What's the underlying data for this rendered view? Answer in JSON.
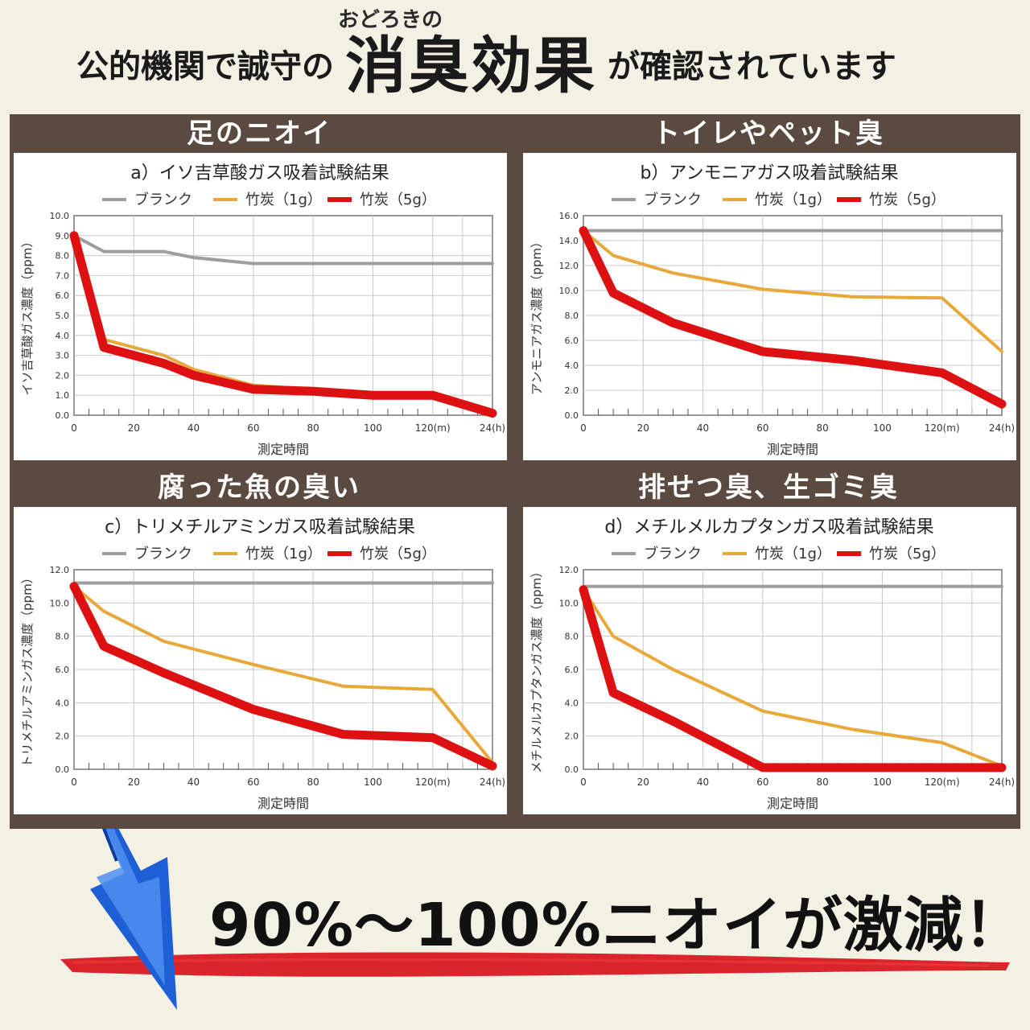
{
  "header": {
    "ruby": "おどろきの",
    "prefix": "公的機関で誠守の",
    "highlight": "消臭効果",
    "suffix": "が確認されています"
  },
  "legend": {
    "blank": "ブランク",
    "charcoal1": "竹炭（1g）",
    "charcoal5": "竹炭（5g）"
  },
  "colors": {
    "blank": "#9e9e9e",
    "charcoal1": "#e8a93a",
    "charcoal5": "#dd1111",
    "frame": "#5b4a3f"
  },
  "footer": {
    "claim": "90%〜100%ニオイが激減！",
    "arrow_icon": "blue-down-arrow-icon",
    "stroke_icon": "red-brush-stroke-icon"
  },
  "panels": [
    {
      "title": "足のニオイ",
      "subtitle": "a）イソ吉草酸ガス吸着試験結果",
      "ylabel": "イソ吉草酸ガス濃度（ppm）",
      "xlabel": "測定時間",
      "x_ticks": [
        "0",
        "20",
        "40",
        "60",
        "80",
        "100",
        "120(m)",
        "24(h)"
      ],
      "y_ticks": [
        "0.0",
        "1.0",
        "2.0",
        "3.0",
        "4.0",
        "5.0",
        "6.0",
        "7.0",
        "8.0",
        "9.0",
        "10.0"
      ],
      "ymax": 10
    },
    {
      "title": "トイレやペット臭",
      "subtitle": "b）アンモニアガス吸着試験結果",
      "ylabel": "アンモニアガス濃度（ppm）",
      "xlabel": "測定時間",
      "x_ticks": [
        "0",
        "20",
        "40",
        "60",
        "80",
        "100",
        "120(m)",
        "24(h)"
      ],
      "y_ticks": [
        "0.0",
        "2.0",
        "4.0",
        "6.0",
        "8.0",
        "10.0",
        "12.0",
        "14.0",
        "16.0"
      ],
      "ymax": 16
    },
    {
      "title": "腐った魚の臭い",
      "subtitle": "c）トリメチルアミンガス吸着試験結果",
      "ylabel": "トリメチルアミンガス濃度（ppm）",
      "xlabel": "測定時間",
      "x_ticks": [
        "0",
        "20",
        "40",
        "60",
        "80",
        "100",
        "120(m)",
        "24(h)"
      ],
      "y_ticks": [
        "0.0",
        "2.0",
        "4.0",
        "6.0",
        "8.0",
        "10.0",
        "12.0"
      ],
      "ymax": 12
    },
    {
      "title": "排せつ臭、生ゴミ臭",
      "subtitle": "d）メチルメルカプタンガス吸着試験結果",
      "ylabel": "メチルメルカプタンガス濃度（ppm）",
      "xlabel": "測定時間",
      "x_ticks": [
        "0",
        "20",
        "40",
        "60",
        "80",
        "100",
        "120(m)",
        "24(h)"
      ],
      "y_ticks": [
        "0.0",
        "2.0",
        "4.0",
        "6.0",
        "8.0",
        "10.0",
        "12.0"
      ],
      "ymax": 12
    }
  ],
  "chart_data": [
    {
      "type": "line",
      "title": "a）イソ吉草酸ガス吸着試験結果",
      "xlabel": "測定時間",
      "ylabel": "イソ吉草酸ガス濃度（ppm）",
      "ylim": [
        0,
        10
      ],
      "grid": true,
      "legend": "top",
      "series": [
        {
          "name": "ブランク",
          "x": [
            "0",
            "10",
            "30",
            "40",
            "60",
            "80",
            "100",
            "120(m)",
            "24(h)"
          ],
          "values": [
            9.0,
            8.2,
            8.2,
            7.9,
            7.6,
            7.6,
            7.6,
            7.6,
            7.6
          ]
        },
        {
          "name": "竹炭（1g）",
          "x": [
            "0",
            "10",
            "30",
            "40",
            "60",
            "80",
            "100",
            "120(m)",
            "24(h)"
          ],
          "values": [
            9.0,
            3.8,
            3.0,
            2.3,
            1.5,
            1.3,
            1.1,
            1.0,
            0.2
          ]
        },
        {
          "name": "竹炭（5g）",
          "x": [
            "0",
            "10",
            "30",
            "40",
            "60",
            "80",
            "100",
            "120(m)",
            "24(h)"
          ],
          "values": [
            9.0,
            3.4,
            2.6,
            2.0,
            1.3,
            1.2,
            1.0,
            1.0,
            0.1
          ]
        }
      ]
    },
    {
      "type": "line",
      "title": "b）アンモニアガス吸着試験結果",
      "xlabel": "測定時間",
      "ylabel": "アンモニアガス濃度（ppm）",
      "ylim": [
        0,
        16
      ],
      "grid": true,
      "legend": "top",
      "series": [
        {
          "name": "ブランク",
          "x": [
            "0",
            "10",
            "30",
            "60",
            "90",
            "120(m)",
            "24(h)"
          ],
          "values": [
            14.8,
            14.8,
            14.8,
            14.8,
            14.8,
            14.8,
            14.8
          ]
        },
        {
          "name": "竹炭（1g）",
          "x": [
            "0",
            "10",
            "30",
            "60",
            "90",
            "120(m)",
            "24(h)"
          ],
          "values": [
            14.8,
            12.8,
            11.4,
            10.1,
            9.5,
            9.4,
            5.1
          ]
        },
        {
          "name": "竹炭（5g）",
          "x": [
            "0",
            "10",
            "30",
            "60",
            "90",
            "120(m)",
            "24(h)"
          ],
          "values": [
            14.8,
            9.8,
            7.4,
            5.1,
            4.4,
            3.4,
            0.9
          ]
        }
      ]
    },
    {
      "type": "line",
      "title": "c）トリメチルアミンガス吸着試験結果",
      "xlabel": "測定時間",
      "ylabel": "トリメチルアミンガス濃度（ppm）",
      "ylim": [
        0,
        12
      ],
      "grid": true,
      "legend": "top",
      "series": [
        {
          "name": "ブランク",
          "x": [
            "0",
            "10",
            "30",
            "60",
            "90",
            "120(m)",
            "24(h)"
          ],
          "values": [
            11.2,
            11.2,
            11.2,
            11.2,
            11.2,
            11.2,
            11.2
          ]
        },
        {
          "name": "竹炭（1g）",
          "x": [
            "0",
            "10",
            "30",
            "60",
            "90",
            "120(m)",
            "24(h)"
          ],
          "values": [
            11.0,
            9.5,
            7.7,
            6.3,
            5.0,
            4.8,
            0.4
          ]
        },
        {
          "name": "竹炭（5g）",
          "x": [
            "0",
            "10",
            "30",
            "60",
            "90",
            "120(m)",
            "24(h)"
          ],
          "values": [
            11.0,
            7.4,
            5.8,
            3.6,
            2.1,
            1.9,
            0.2
          ]
        }
      ]
    },
    {
      "type": "line",
      "title": "d）メチルメルカプタンガス吸着試験結果",
      "xlabel": "測定時間",
      "ylabel": "メチルメルカプタンガス濃度（ppm）",
      "ylim": [
        0,
        12
      ],
      "grid": true,
      "legend": "top",
      "series": [
        {
          "name": "ブランク",
          "x": [
            "0",
            "10",
            "30",
            "60",
            "90",
            "120(m)",
            "24(h)"
          ],
          "values": [
            11.0,
            11.0,
            11.0,
            11.0,
            11.0,
            11.0,
            11.0
          ]
        },
        {
          "name": "竹炭（1g）",
          "x": [
            "0",
            "10",
            "30",
            "60",
            "90",
            "120(m)",
            "24(h)"
          ],
          "values": [
            10.8,
            8.0,
            6.0,
            3.5,
            2.4,
            1.6,
            0.2
          ]
        },
        {
          "name": "竹炭（5g）",
          "x": [
            "0",
            "10",
            "30",
            "60",
            "90",
            "120(m)",
            "24(h)"
          ],
          "values": [
            10.8,
            4.6,
            2.9,
            0.1,
            0.1,
            0.1,
            0.1
          ]
        }
      ]
    }
  ]
}
